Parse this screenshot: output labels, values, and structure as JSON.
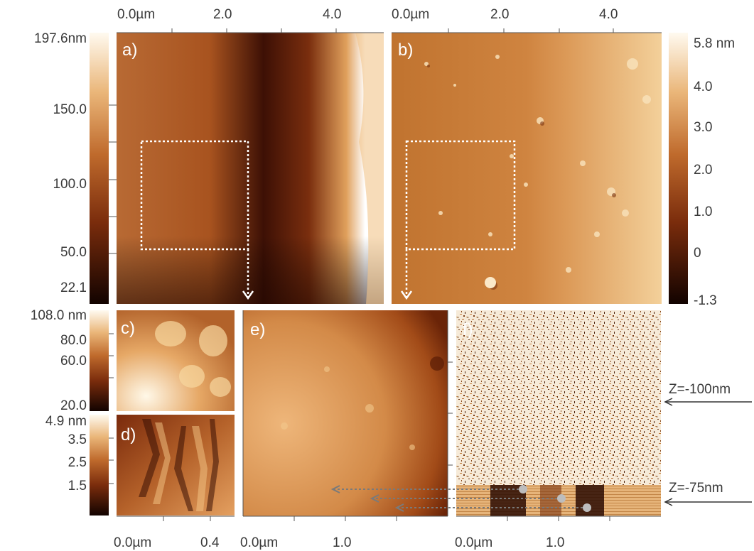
{
  "panels": {
    "a": {
      "label": "a)"
    },
    "b": {
      "label": "b)"
    },
    "c": {
      "label": "c)"
    },
    "d": {
      "label": "d)"
    },
    "e": {
      "label": "e)"
    },
    "f": {
      "label": "f)"
    }
  },
  "axes": {
    "top_a": [
      "0.0µm",
      "2.0",
      "4.0"
    ],
    "top_b": [
      "0.0µm",
      "2.0",
      "4.0"
    ],
    "bottom_cd": [
      "0.0µm",
      "0.4"
    ],
    "bottom_e": [
      "0.0µm",
      "1.0"
    ],
    "bottom_f": [
      "0.0µm",
      "1.0"
    ]
  },
  "colorbars": {
    "a": [
      "197.6nm",
      "150.0",
      "100.0",
      "50.0",
      "22.1"
    ],
    "b": [
      "5.8 nm",
      "4.0",
      "3.0",
      "2.0",
      "1.0",
      "0",
      "-1.3"
    ],
    "c": [
      "108.0 nm",
      "80.0",
      "60.0",
      "20.0"
    ],
    "d": [
      "4.9 nm",
      "3.5",
      "2.5",
      "1.5"
    ]
  },
  "annotations": {
    "z1": "Z=-100nm",
    "z2": "Z=-75nm"
  },
  "colors": {
    "dark": "#1a0600",
    "mid": "#a8501e",
    "light": "#fff8ea"
  }
}
